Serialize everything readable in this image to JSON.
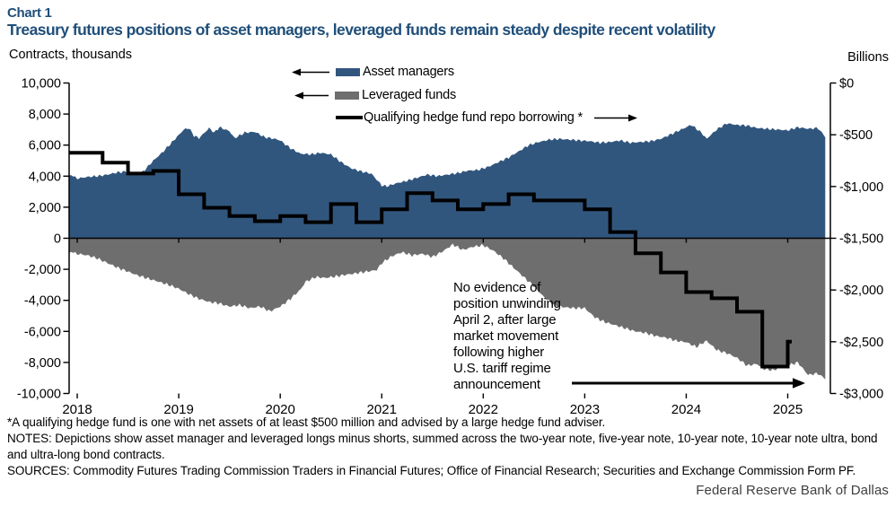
{
  "header": {
    "chart_number": "Chart 1",
    "title": "Treasury futures positions of asset managers, leveraged funds remain steady despite recent volatility"
  },
  "legend": {
    "asset_managers": "Asset managers",
    "leveraged_funds": "Leveraged funds",
    "repo_line": "Qualifying hedge fund repo borrowing *"
  },
  "annotation": {
    "text": "No evidence of\nposition unwinding\nApril 2, after large\nmarket movement\nfollowing higher\nU.S. tariff regime\nannouncement"
  },
  "footnotes": {
    "asterisk": "*A qualifying hedge fund is one with net assets of at least $500 million and advised by a large hedge fund adviser.",
    "notes": "NOTES: Depictions show asset manager and leveraged longs minus shorts, summed across the two-year note, five-year note, 10-year note, 10-year note ultra, bond and ultra-long bond contracts.",
    "sources": "SOURCES: Commodity Futures Trading Commission Traders in Financial Futures; Office of Financial Research; Securities and Exchange Commission Form PF.",
    "credit": "Federal Reserve Bank of Dallas"
  },
  "colors": {
    "title_blue": "#1F4E79",
    "asset_blue": "#31567E",
    "leveraged_gray": "#6E6E6E",
    "repo_black": "#000000"
  },
  "chart_data": {
    "type": "area",
    "title": "Treasury futures positions of asset managers and leveraged funds, with qualifying hedge fund repo borrowing",
    "left_axis": {
      "label": "Contracts, thousands",
      "range": [
        -10000,
        10000
      ],
      "ticks": [
        [
          10000,
          "10,000"
        ],
        [
          8000,
          "8,000"
        ],
        [
          6000,
          "6,000"
        ],
        [
          4000,
          "4,000"
        ],
        [
          2000,
          "2,000"
        ],
        [
          0,
          "0"
        ],
        [
          -2000,
          "-2,000"
        ],
        [
          -4000,
          "-4,000"
        ],
        [
          -6000,
          "-6,000"
        ],
        [
          -8000,
          "-8,000"
        ],
        [
          -10000,
          "-10,000"
        ]
      ]
    },
    "right_axis": {
      "label": "Billions",
      "range": [
        -3000,
        0
      ],
      "ticks": [
        [
          0,
          "$0"
        ],
        [
          -500,
          "-$500"
        ],
        [
          -1000,
          "-$1,000"
        ],
        [
          -1500,
          "-$1,500"
        ],
        [
          -2000,
          "-$2,000"
        ],
        [
          -2500,
          "-$2,500"
        ],
        [
          -3000,
          "-$3,000"
        ]
      ]
    },
    "x_axis": {
      "range": [
        2017.92,
        2025.42
      ],
      "ticks": [
        [
          2018,
          "2018"
        ],
        [
          2019,
          "2019"
        ],
        [
          2020,
          "2020"
        ],
        [
          2021,
          "2021"
        ],
        [
          2022,
          "2022"
        ],
        [
          2023,
          "2023"
        ],
        [
          2024,
          "2024"
        ],
        [
          2025,
          "2025"
        ]
      ]
    },
    "series": [
      {
        "name": "Asset managers",
        "type": "area",
        "axis": "left",
        "color": "#31567E",
        "points": [
          [
            2017.92,
            4050
          ],
          [
            2018.0,
            3850
          ],
          [
            2018.1,
            3950
          ],
          [
            2018.2,
            4000
          ],
          [
            2018.3,
            4100
          ],
          [
            2018.4,
            4250
          ],
          [
            2018.5,
            4300
          ],
          [
            2018.6,
            4150
          ],
          [
            2018.65,
            4300
          ],
          [
            2018.75,
            5000
          ],
          [
            2018.85,
            5600
          ],
          [
            2018.95,
            6300
          ],
          [
            2019.05,
            7000
          ],
          [
            2019.1,
            7100
          ],
          [
            2019.15,
            6600
          ],
          [
            2019.2,
            6450
          ],
          [
            2019.3,
            7100
          ],
          [
            2019.35,
            6800
          ],
          [
            2019.4,
            7150
          ],
          [
            2019.5,
            6900
          ],
          [
            2019.55,
            6450
          ],
          [
            2019.65,
            6800
          ],
          [
            2019.75,
            6850
          ],
          [
            2019.85,
            6500
          ],
          [
            2019.95,
            6400
          ],
          [
            2020.0,
            6300
          ],
          [
            2020.1,
            5800
          ],
          [
            2020.2,
            5450
          ],
          [
            2020.3,
            5400
          ],
          [
            2020.4,
            5500
          ],
          [
            2020.5,
            5400
          ],
          [
            2020.6,
            4900
          ],
          [
            2020.7,
            4500
          ],
          [
            2020.8,
            4300
          ],
          [
            2020.9,
            4150
          ],
          [
            2021.0,
            3400
          ],
          [
            2021.05,
            3350
          ],
          [
            2021.15,
            3550
          ],
          [
            2021.25,
            3700
          ],
          [
            2021.35,
            3900
          ],
          [
            2021.45,
            4100
          ],
          [
            2021.55,
            4000
          ],
          [
            2021.65,
            4100
          ],
          [
            2021.75,
            4200
          ],
          [
            2021.85,
            4350
          ],
          [
            2021.95,
            4400
          ],
          [
            2022.05,
            4600
          ],
          [
            2022.15,
            4900
          ],
          [
            2022.25,
            5200
          ],
          [
            2022.35,
            5600
          ],
          [
            2022.45,
            6000
          ],
          [
            2022.55,
            6200
          ],
          [
            2022.65,
            6350
          ],
          [
            2022.75,
            6400
          ],
          [
            2022.85,
            6350
          ],
          [
            2022.95,
            6300
          ],
          [
            2023.05,
            6250
          ],
          [
            2023.15,
            6150
          ],
          [
            2023.25,
            6200
          ],
          [
            2023.35,
            6300
          ],
          [
            2023.45,
            6150
          ],
          [
            2023.55,
            6200
          ],
          [
            2023.65,
            6250
          ],
          [
            2023.75,
            6400
          ],
          [
            2023.85,
            6700
          ],
          [
            2023.95,
            7000
          ],
          [
            2024.05,
            7300
          ],
          [
            2024.15,
            6800
          ],
          [
            2024.2,
            6400
          ],
          [
            2024.3,
            7000
          ],
          [
            2024.4,
            7400
          ],
          [
            2024.5,
            7300
          ],
          [
            2024.6,
            7250
          ],
          [
            2024.7,
            7100
          ],
          [
            2024.8,
            7050
          ],
          [
            2024.9,
            7000
          ],
          [
            2025.0,
            6950
          ],
          [
            2025.1,
            7150
          ],
          [
            2025.2,
            7050
          ],
          [
            2025.3,
            7100
          ],
          [
            2025.37,
            6500
          ]
        ]
      },
      {
        "name": "Leveraged funds",
        "type": "area",
        "axis": "left",
        "color": "#6E6E6E",
        "points": [
          [
            2017.92,
            -950
          ],
          [
            2018.0,
            -1000
          ],
          [
            2018.1,
            -1100
          ],
          [
            2018.2,
            -1300
          ],
          [
            2018.3,
            -1600
          ],
          [
            2018.4,
            -1900
          ],
          [
            2018.5,
            -2150
          ],
          [
            2018.6,
            -2400
          ],
          [
            2018.7,
            -2600
          ],
          [
            2018.8,
            -2800
          ],
          [
            2018.9,
            -3000
          ],
          [
            2019.0,
            -3250
          ],
          [
            2019.1,
            -3600
          ],
          [
            2019.2,
            -3900
          ],
          [
            2019.3,
            -4100
          ],
          [
            2019.4,
            -4200
          ],
          [
            2019.5,
            -4400
          ],
          [
            2019.6,
            -4300
          ],
          [
            2019.7,
            -4500
          ],
          [
            2019.8,
            -4400
          ],
          [
            2019.9,
            -4700
          ],
          [
            2020.0,
            -4400
          ],
          [
            2020.1,
            -3900
          ],
          [
            2020.2,
            -3300
          ],
          [
            2020.25,
            -2800
          ],
          [
            2020.35,
            -2500
          ],
          [
            2020.45,
            -2550
          ],
          [
            2020.55,
            -2450
          ],
          [
            2020.65,
            -2350
          ],
          [
            2020.75,
            -2250
          ],
          [
            2020.85,
            -2150
          ],
          [
            2020.95,
            -2050
          ],
          [
            2021.0,
            -1600
          ],
          [
            2021.1,
            -1150
          ],
          [
            2021.2,
            -900
          ],
          [
            2021.3,
            -1100
          ],
          [
            2021.4,
            -1000
          ],
          [
            2021.5,
            -1200
          ],
          [
            2021.6,
            -850
          ],
          [
            2021.7,
            -400
          ],
          [
            2021.8,
            -750
          ],
          [
            2021.9,
            -550
          ],
          [
            2022.0,
            -450
          ],
          [
            2022.1,
            -800
          ],
          [
            2022.2,
            -1300
          ],
          [
            2022.3,
            -1900
          ],
          [
            2022.4,
            -2500
          ],
          [
            2022.5,
            -3100
          ],
          [
            2022.6,
            -3800
          ],
          [
            2022.7,
            -4300
          ],
          [
            2022.8,
            -4450
          ],
          [
            2022.9,
            -4500
          ],
          [
            2023.0,
            -4500
          ],
          [
            2023.1,
            -5100
          ],
          [
            2023.2,
            -5400
          ],
          [
            2023.3,
            -5600
          ],
          [
            2023.4,
            -5800
          ],
          [
            2023.5,
            -6000
          ],
          [
            2023.6,
            -6100
          ],
          [
            2023.7,
            -6300
          ],
          [
            2023.8,
            -6400
          ],
          [
            2023.9,
            -6600
          ],
          [
            2024.0,
            -6700
          ],
          [
            2024.1,
            -7000
          ],
          [
            2024.2,
            -6600
          ],
          [
            2024.3,
            -7200
          ],
          [
            2024.4,
            -7400
          ],
          [
            2024.5,
            -7700
          ],
          [
            2024.6,
            -8200
          ],
          [
            2024.7,
            -8100
          ],
          [
            2024.75,
            -8400
          ],
          [
            2024.85,
            -8500
          ],
          [
            2024.95,
            -8300
          ],
          [
            2025.05,
            -8100
          ],
          [
            2025.1,
            -8000
          ],
          [
            2025.2,
            -8800
          ],
          [
            2025.3,
            -8700
          ],
          [
            2025.37,
            -9100
          ]
        ]
      },
      {
        "name": "Qualifying hedge fund repo borrowing *",
        "type": "step-line",
        "axis": "right",
        "color": "#000000",
        "quarters": [
          [
            2018.0,
            -675
          ],
          [
            2018.25,
            -770
          ],
          [
            2018.5,
            -875
          ],
          [
            2018.75,
            -850
          ],
          [
            2019.0,
            -1075
          ],
          [
            2019.25,
            -1205
          ],
          [
            2019.5,
            -1285
          ],
          [
            2019.75,
            -1335
          ],
          [
            2020.0,
            -1285
          ],
          [
            2020.25,
            -1345
          ],
          [
            2020.5,
            -1170
          ],
          [
            2020.75,
            -1345
          ],
          [
            2021.0,
            -1220
          ],
          [
            2021.25,
            -1065
          ],
          [
            2021.5,
            -1135
          ],
          [
            2021.75,
            -1220
          ],
          [
            2022.0,
            -1170
          ],
          [
            2022.25,
            -1075
          ],
          [
            2022.5,
            -1135
          ],
          [
            2022.75,
            -1135
          ],
          [
            2023.0,
            -1220
          ],
          [
            2023.25,
            -1440
          ],
          [
            2023.5,
            -1645
          ],
          [
            2023.75,
            -1830
          ],
          [
            2024.0,
            -2020
          ],
          [
            2024.25,
            -2080
          ],
          [
            2024.5,
            -2210
          ],
          [
            2024.75,
            -2740
          ],
          [
            2025.0,
            -2500
          ]
        ]
      }
    ],
    "legend_position": "top-center",
    "grid": false
  }
}
